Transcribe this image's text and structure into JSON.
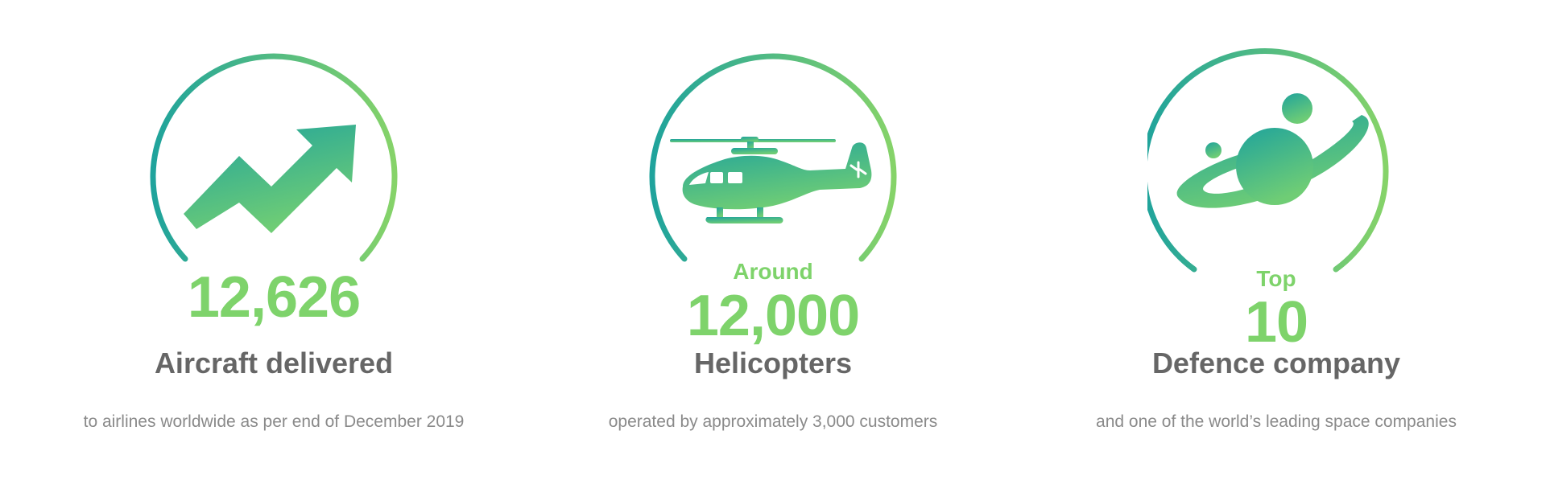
{
  "stats": [
    {
      "kicker": "",
      "figure": "12,626",
      "headline": "Aircraft delivered",
      "caption": "to airlines worldwide as per end of December 2019",
      "icon": "trending-up-arrow-icon"
    },
    {
      "kicker": "Around",
      "figure": "12,000",
      "headline": "Helicopters",
      "caption": "operated by approximately 3,000 customers",
      "icon": "helicopter-icon"
    },
    {
      "kicker": "Top",
      "figure": "10",
      "headline": "Defence company",
      "caption": "and one of the world’s leading space companies",
      "icon": "planet-icon"
    }
  ],
  "colors": {
    "gradient_start": "#1fa39c",
    "gradient_end": "#86d369",
    "figure": "#7ed36b",
    "headline": "#666666",
    "caption": "#8a8a8a"
  }
}
